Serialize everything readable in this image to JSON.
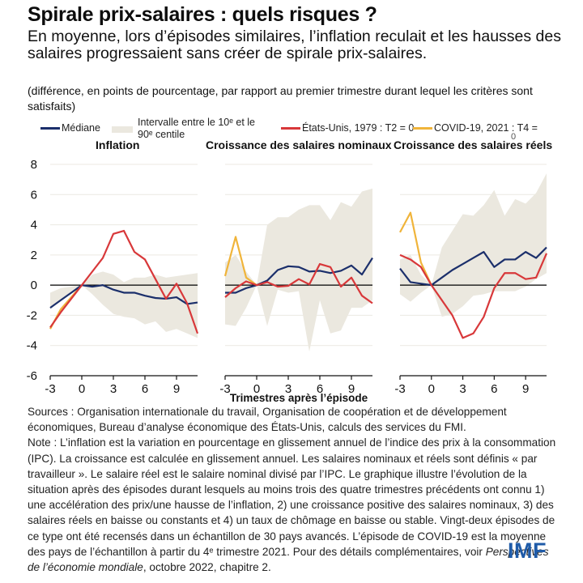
{
  "header": {
    "title": "Spirale prix-salaires : quels risques ?",
    "subtitle": "En moyenne, lors d’épisodes similaires, l’inflation reculait et les hausses des salaires progressaient sans créer de spirale prix-salaires.",
    "units": "(différence, en points de pourcentage, par rapport au premier trimestre durant lequel les critères sont satisfaits)"
  },
  "legend": {
    "median": "Médiane",
    "band_line1": "Intervalle entre le 10ᵉ et le",
    "band_line2": "90ᵉ centile",
    "us": "États-Unis, 1979 : T2 = 0",
    "covid": "COVID-19, 2021 : T4 =",
    "covid_overflow": "0"
  },
  "colors": {
    "median": "#1b2f6b",
    "us": "#d8383a",
    "covid": "#f0b43a",
    "band": "#ebe8df",
    "grid": "#ece9e2",
    "zero": "#000000",
    "brand": "#1f5ba8"
  },
  "chart_data": [
    {
      "type": "line",
      "title": "Inflation",
      "xlabel": "",
      "ylabel": "",
      "x": [
        -3,
        -2,
        -1,
        0,
        1,
        2,
        3,
        4,
        5,
        6,
        7,
        8,
        9,
        10,
        11
      ],
      "xticks": [
        -3,
        0,
        3,
        6,
        9
      ],
      "yticks": [
        8,
        6,
        4,
        2,
        0,
        -2,
        -4,
        -6
      ],
      "ylim": [
        -6,
        8
      ],
      "grid": true,
      "band": {
        "name": "Intervalle entre le 10ᵉ et le 90ᵉ centile",
        "upper": [
          -0.5,
          -0.2,
          -0.1,
          0,
          0.7,
          0.9,
          0.7,
          0.2,
          0.5,
          0.5,
          0.7,
          0.5,
          0.6,
          0.7,
          0.8
        ],
        "lower": [
          -1.6,
          -1.0,
          -0.4,
          0,
          -0.6,
          -1.3,
          -1.9,
          -2.1,
          -2.2,
          -2.6,
          -2.4,
          -3.1,
          -2.9,
          -3.2,
          -3.5
        ]
      },
      "series": [
        {
          "name": "Médiane",
          "key": "median",
          "values": [
            -1.5,
            -1.0,
            -0.5,
            0,
            -0.1,
            0,
            -0.3,
            -0.5,
            -0.5,
            -0.7,
            -0.85,
            -0.9,
            -0.8,
            -1.25,
            -1.15
          ]
        },
        {
          "name": "États-Unis, 1979 : T2 = 0",
          "key": "us",
          "values": [
            -2.8,
            -1.8,
            -0.9,
            0,
            0.9,
            1.8,
            3.4,
            3.6,
            2.2,
            1.7,
            0.4,
            -0.9,
            0.1,
            -1.2,
            -3.2
          ]
        },
        {
          "name": "COVID-19, 2021 : T4 = 0",
          "key": "covid",
          "values": [
            -2.9,
            -1.6,
            -0.8,
            0
          ]
        }
      ]
    },
    {
      "type": "line",
      "title": "Croissance des salaires nominaux",
      "xlabel": "Trimestres après l’épisode",
      "ylabel": "",
      "x": [
        -3,
        -2,
        -1,
        0,
        1,
        2,
        3,
        4,
        5,
        6,
        7,
        8,
        9,
        10,
        11
      ],
      "xticks": [
        -3,
        0,
        3,
        6,
        9
      ],
      "yticks": [
        8,
        6,
        4,
        2,
        0,
        -2,
        -4,
        -6
      ],
      "ylim": [
        -6,
        8
      ],
      "grid": true,
      "band": {
        "name": "Intervalle entre le 10ᵉ et le 90ᵉ centile",
        "upper": [
          1.5,
          2.0,
          0.9,
          0,
          4.0,
          4.5,
          4.5,
          5.0,
          5.3,
          5.3,
          4.3,
          5.5,
          5.2,
          6.2,
          6.4
        ],
        "lower": [
          -2.6,
          -2.7,
          -1.5,
          0,
          -2.7,
          -0.3,
          -0.5,
          -0.4,
          -4.4,
          -1.0,
          -3.2,
          -3.0,
          -1.5,
          -1.5,
          -1.0
        ]
      },
      "series": [
        {
          "name": "Médiane",
          "key": "median",
          "values": [
            -0.5,
            -0.5,
            -0.2,
            0,
            0.3,
            1.0,
            1.25,
            1.2,
            0.9,
            0.95,
            0.8,
            0.95,
            1.3,
            0.7,
            1.8
          ]
        },
        {
          "name": "États-Unis, 1979 : T2 = 0",
          "key": "us",
          "values": [
            -0.8,
            -0.2,
            0.25,
            0,
            0.2,
            -0.1,
            -0.05,
            0.4,
            0.05,
            1.4,
            1.2,
            -0.1,
            0.5,
            -0.7,
            -1.2
          ]
        },
        {
          "name": "COVID-19, 2021 : T4 = 0",
          "key": "covid",
          "values": [
            0.6,
            3.2,
            0.5,
            0
          ]
        }
      ]
    },
    {
      "type": "line",
      "title": "Croissance des salaires réels",
      "xlabel": "",
      "ylabel": "",
      "x": [
        -3,
        -2,
        -1,
        0,
        1,
        2,
        3,
        4,
        5,
        6,
        7,
        8,
        9,
        10,
        11
      ],
      "xticks": [
        -3,
        0,
        3,
        6,
        9
      ],
      "yticks": [
        8,
        6,
        4,
        2,
        0,
        -2,
        -4,
        -6
      ],
      "ylim": [
        -6,
        8
      ],
      "grid": true,
      "band": {
        "name": "Intervalle entre le 10ᵉ et le 90ᵉ centile",
        "upper": [
          1.7,
          2.0,
          0.7,
          0,
          2.5,
          3.6,
          4.7,
          4.6,
          5.3,
          6.3,
          4.6,
          5.7,
          5.4,
          6.1,
          7.4
        ],
        "lower": [
          -0.6,
          -1.1,
          -0.5,
          0,
          -2.1,
          -1.9,
          -1.4,
          -0.7,
          -0.6,
          -0.4,
          -0.4,
          -0.4,
          -0.1,
          0.4,
          0.8
        ]
      },
      "series": [
        {
          "name": "Médiane",
          "key": "median",
          "values": [
            1.1,
            0.2,
            0.1,
            0,
            0.5,
            1.0,
            1.4,
            1.8,
            2.2,
            1.2,
            1.7,
            1.7,
            2.2,
            1.8,
            2.5
          ]
        },
        {
          "name": "États-Unis, 1979 : T2 = 0",
          "key": "us",
          "values": [
            2.0,
            1.7,
            1.2,
            0,
            -1.0,
            -2.0,
            -3.5,
            -3.2,
            -2.1,
            -0.2,
            0.8,
            0.8,
            0.4,
            0.5,
            2.1
          ]
        },
        {
          "name": "COVID-19, 2021 : T4 = 0",
          "key": "covid",
          "values": [
            3.5,
            4.8,
            1.5,
            0
          ]
        }
      ]
    }
  ],
  "notes": {
    "sources": "Sources : Organisation internationale du travail, Organisation de coopération et de développement économiques, Bureau d’analyse économique des États-Unis, calculs des services du FMI.",
    "note": "Note : L’inflation est la variation en pourcentage en glissement annuel de l’indice des prix à la consommation (IPC). La croissance est calculée en glissement annuel. Les salaires nominaux et réels sont définis « par travailleur ». Le salaire réel est le salaire nominal divisé par l’IPC. Le graphique illustre l’évolution de la situation après des épisodes durant lesquels au moins trois des quatre trimestres précédents ont connu 1) une accélération des prix/une hausse de l’inflation, 2) une croissance positive des salaires nominaux, 3) des salaires réels en baisse ou constants et 4) un taux de chômage en baisse ou stable. Vingt-deux épisodes de ce type ont été recensés dans un échantillon de 30 pays avancés. L’épisode de COVID-19 est la moyenne des pays de l’échantillon à partir du 4ᵉ trimestre 2021. Pour des détails complémentaires, voir ",
    "ref_italic_1": "Perspectives de l’économie mondiale",
    "ref_tail": ", octobre 2022, chapitre 2."
  },
  "logo": "IMF"
}
